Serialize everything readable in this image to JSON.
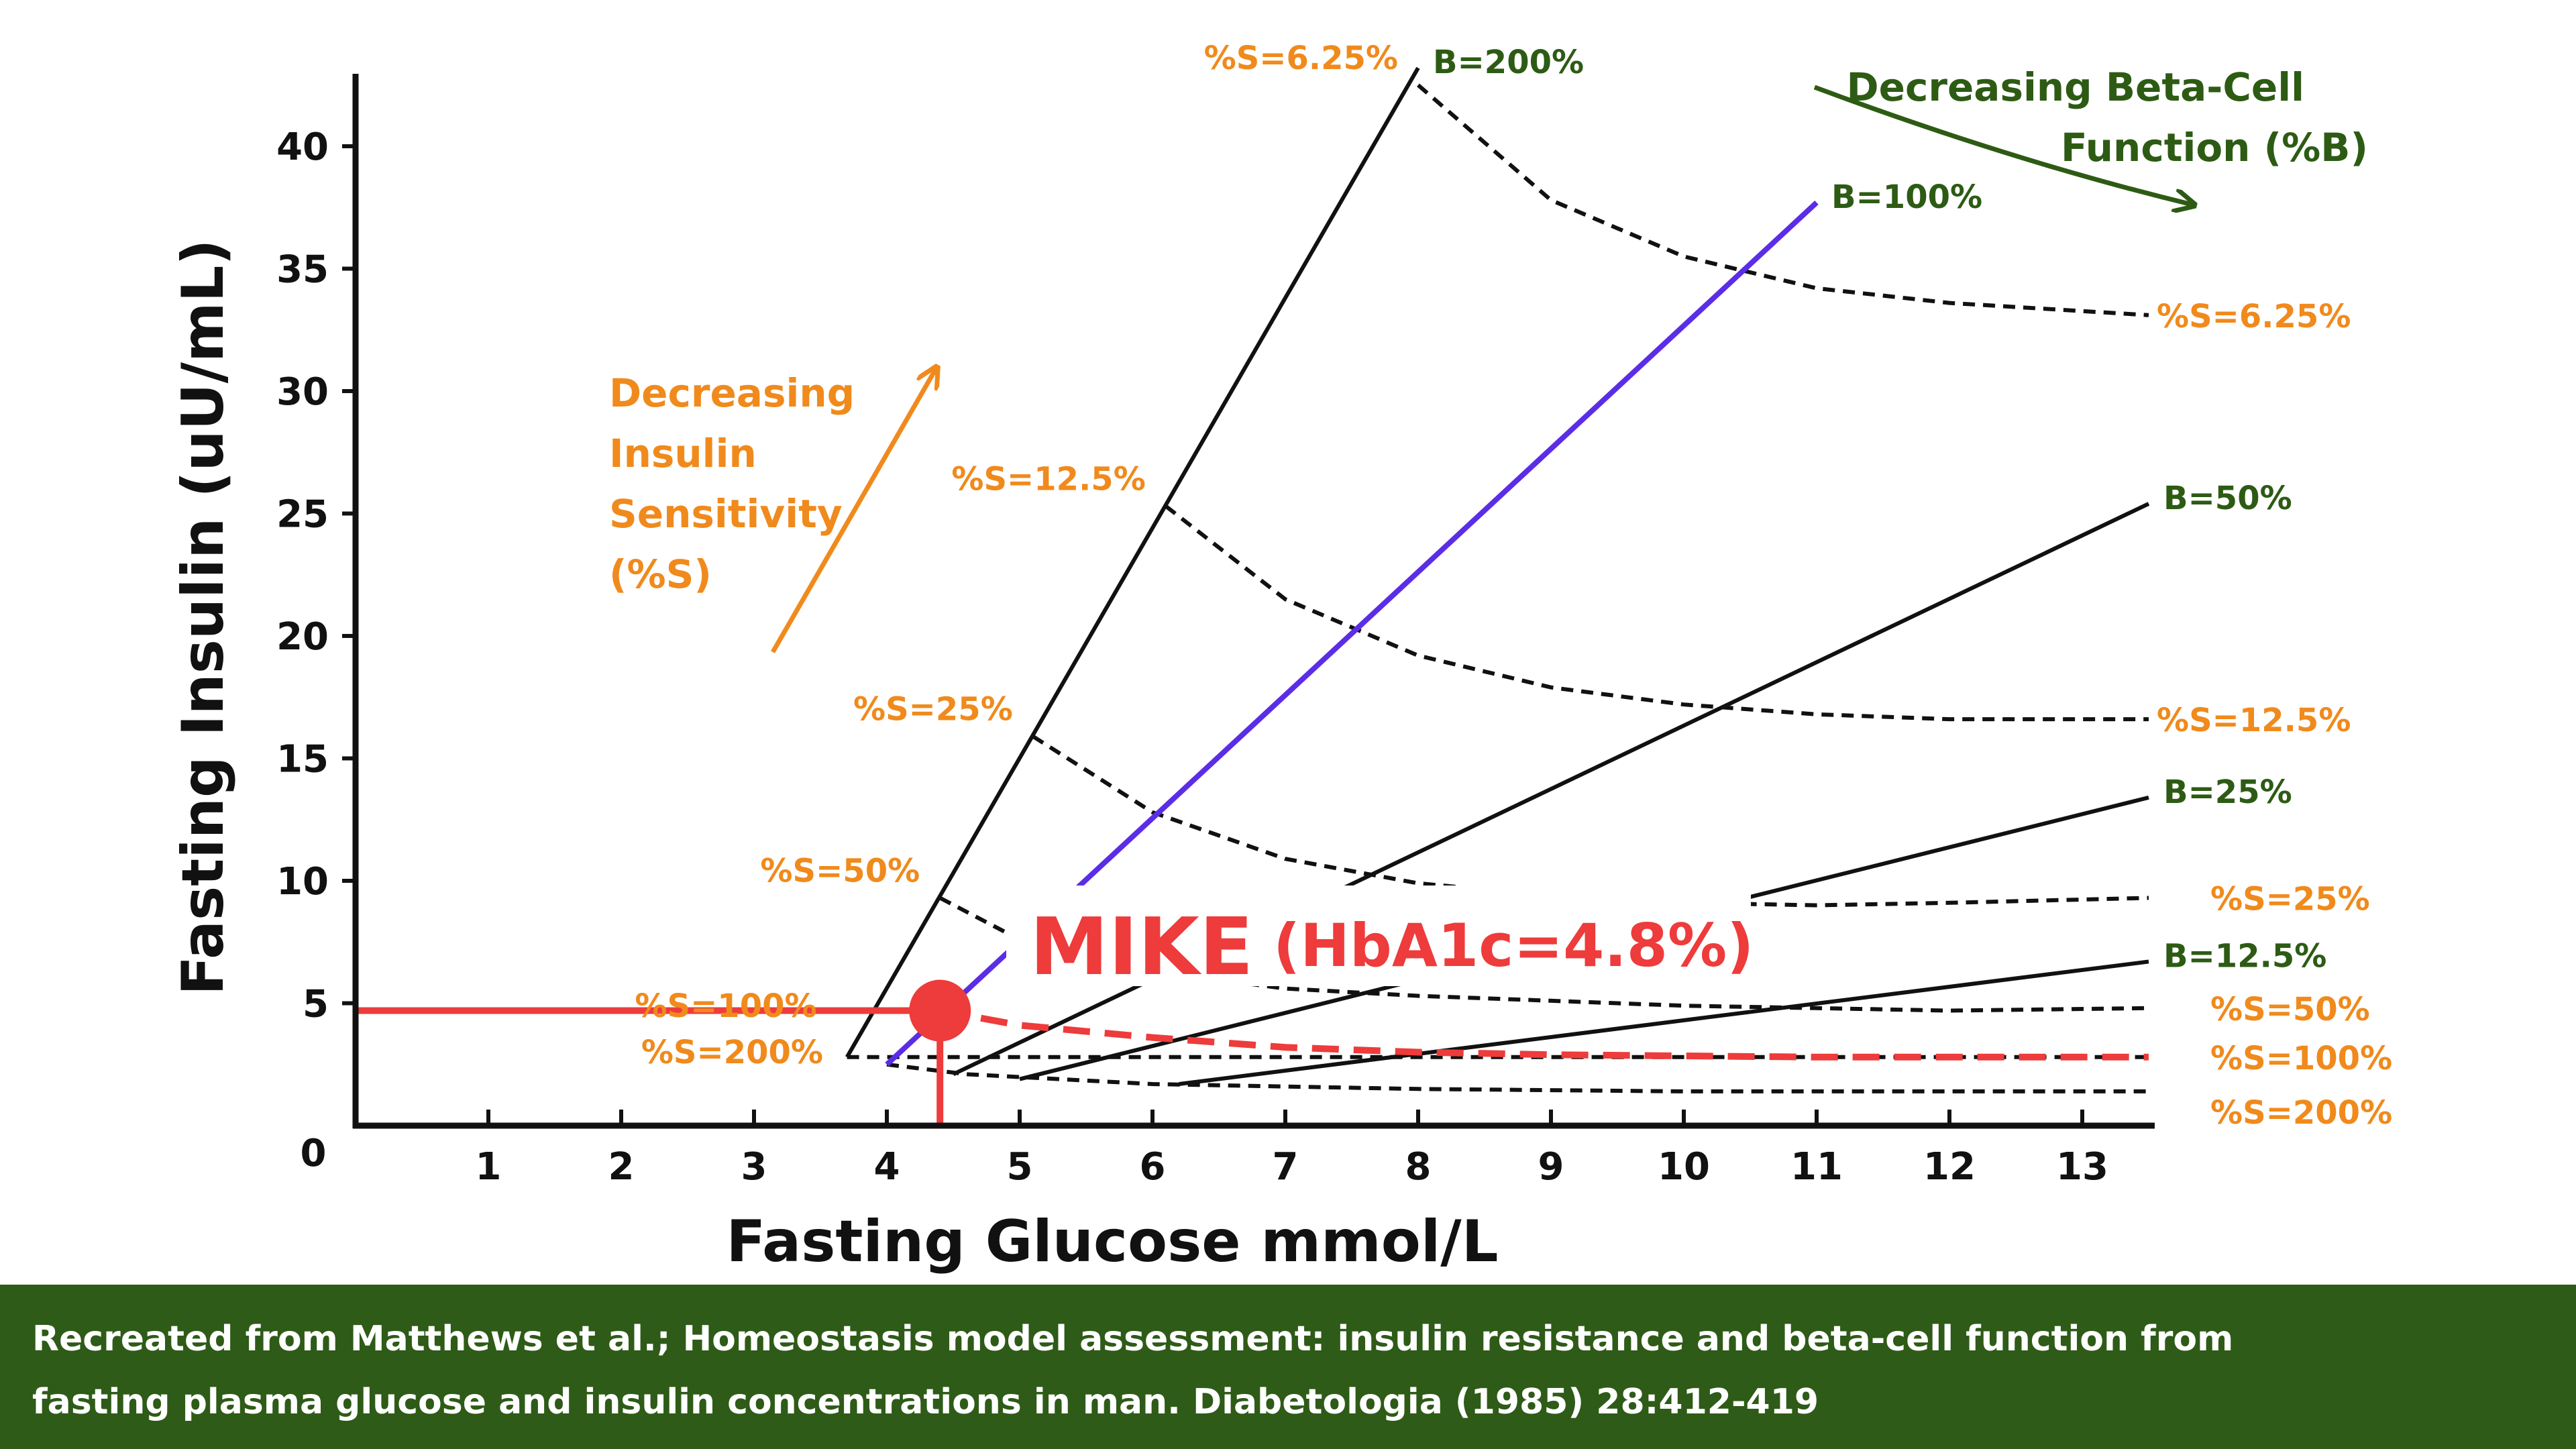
{
  "chart_data": {
    "type": "line",
    "title": "",
    "xlabel": "Fasting Glucose mmol/L",
    "ylabel": "Fasting Insulin (uU/mL)",
    "xlim": [
      0,
      13.5
    ],
    "ylim": [
      0,
      43
    ],
    "x_ticks": [
      1,
      2,
      3,
      4,
      5,
      6,
      7,
      8,
      9,
      10,
      11,
      12,
      13
    ],
    "y_ticks": [
      5,
      10,
      15,
      20,
      25,
      30,
      35,
      40
    ],
    "origin_label": "0",
    "beta_lines": [
      {
        "name": "B=200%",
        "from": [
          3.7,
          2.8
        ],
        "to": [
          8.0,
          43.2
        ],
        "highlight": false
      },
      {
        "name": "B=100%",
        "from": [
          4.0,
          2.5
        ],
        "to": [
          11.0,
          37.7
        ],
        "highlight": true
      },
      {
        "name": "B=50%",
        "from": [
          4.5,
          2.1
        ],
        "to": [
          13.5,
          25.4
        ],
        "highlight": false
      },
      {
        "name": "B=25%",
        "from": [
          5.0,
          1.9
        ],
        "to": [
          13.5,
          13.4
        ],
        "highlight": false
      },
      {
        "name": "B=12.5%",
        "from": [
          6.2,
          1.7
        ],
        "to": [
          13.5,
          6.7
        ],
        "highlight": false
      }
    ],
    "sensitivity_curves": [
      {
        "name": "%S=6.25%",
        "left_label": "%S=6.25%",
        "right_label": "%S=6.25%",
        "points": [
          [
            8.0,
            42.5
          ],
          [
            9.0,
            37.8
          ],
          [
            10.0,
            35.5
          ],
          [
            11.0,
            34.2
          ],
          [
            12.0,
            33.6
          ],
          [
            13.5,
            33.1
          ]
        ]
      },
      {
        "name": "%S=12.5%",
        "left_label": "%S=12.5%",
        "right_label": "%S=12.5%",
        "points": [
          [
            6.1,
            25.3
          ],
          [
            7.0,
            21.5
          ],
          [
            8.0,
            19.2
          ],
          [
            9.0,
            17.9
          ],
          [
            10.0,
            17.2
          ],
          [
            11.0,
            16.8
          ],
          [
            12.0,
            16.6
          ],
          [
            13.5,
            16.6
          ]
        ]
      },
      {
        "name": "%S=25%",
        "left_label": "%S=25%",
        "right_label": "%S=25%",
        "points": [
          [
            5.1,
            15.9
          ],
          [
            6.0,
            12.8
          ],
          [
            7.0,
            10.9
          ],
          [
            8.0,
            9.9
          ],
          [
            9.0,
            9.4
          ],
          [
            10.0,
            9.1
          ],
          [
            11.0,
            9.0
          ],
          [
            12.0,
            9.1
          ],
          [
            13.5,
            9.3
          ]
        ]
      },
      {
        "name": "%S=50%",
        "left_label": "%S=50%",
        "right_label": "%S=50%",
        "points": [
          [
            4.4,
            9.3
          ],
          [
            5.0,
            7.6
          ],
          [
            6.0,
            6.3
          ],
          [
            7.0,
            5.6
          ],
          [
            8.0,
            5.3
          ],
          [
            9.0,
            5.1
          ],
          [
            10.0,
            4.9
          ],
          [
            11.0,
            4.8
          ],
          [
            12.0,
            4.7
          ],
          [
            13.5,
            4.8
          ]
        ]
      },
      {
        "name": "%S=100%",
        "left_label": "%S=100%",
        "right_label": "%S=100%",
        "points": [
          [
            3.7,
            2.8
          ],
          [
            13.5,
            2.8
          ]
        ]
      },
      {
        "name": "%S=200%",
        "left_label": "%S=200%",
        "right_label": "%S=200%",
        "points": [
          [
            4.0,
            2.5
          ],
          [
            4.6,
            2.1
          ],
          [
            6.0,
            1.7
          ],
          [
            8.0,
            1.5
          ],
          [
            10.0,
            1.4
          ],
          [
            12.0,
            1.4
          ],
          [
            13.5,
            1.4
          ]
        ]
      }
    ],
    "subject": {
      "name": "MIKE",
      "detail": "(HbA1c=4.8%)",
      "glucose": 4.4,
      "insulin": 4.7,
      "curve": [
        [
          4.4,
          4.7
        ],
        [
          5.0,
          4.1
        ],
        [
          6.0,
          3.6
        ],
        [
          7.0,
          3.2
        ],
        [
          8.0,
          3.0
        ],
        [
          9.0,
          2.9
        ],
        [
          10.0,
          2.85
        ],
        [
          11.0,
          2.8
        ],
        [
          12.0,
          2.8
        ],
        [
          13.5,
          2.8
        ]
      ]
    },
    "annotations": {
      "insulin_sensitivity": [
        "Decreasing",
        "Insulin",
        "Sensitivity",
        "(%S)"
      ],
      "beta_cell": [
        "Decreasing Beta-Cell",
        "Function (%B)"
      ]
    },
    "colors": {
      "axis": "#111111",
      "beta_line": "#111111",
      "beta_highlight": "#5b2de6",
      "sensitivity_label": "#f08a1c",
      "beta_label": "#2d5b14",
      "subject": "#ee3b3b"
    }
  },
  "footer": {
    "line1": "Recreated from Matthews et al.; Homeostasis model assessment: insulin resistance and beta-cell function from",
    "line2": "fasting plasma glucose and insulin concentrations in man. Diabetologia (1985) 28:412-419"
  }
}
